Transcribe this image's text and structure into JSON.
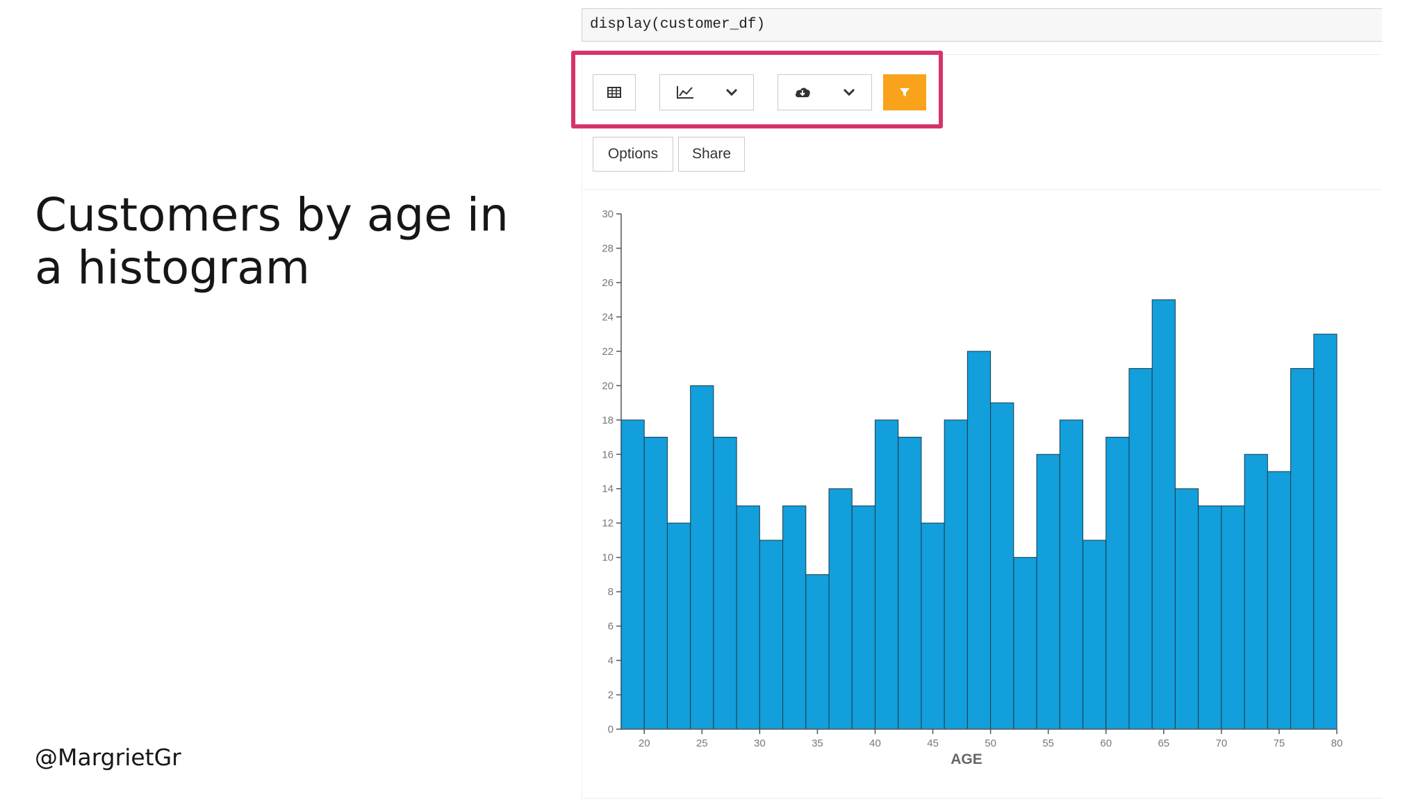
{
  "slide": {
    "title_line1": "Customers by age in",
    "title_line2": "a histogram",
    "handle": "@MargrietGr"
  },
  "notebook": {
    "code": "display(customer_df)",
    "toolbar": {
      "table_icon": "table-icon",
      "chart_icon": "line-chart-icon",
      "download_icon": "cloud-download-icon",
      "filter_icon": "filter-icon",
      "chevron_icon": "chevron-down-icon",
      "filter_color": "#f8a31b",
      "highlight_color": "#d6336c"
    },
    "buttons": {
      "options_label": "Options",
      "share_label": "Share"
    }
  },
  "chart_data": {
    "type": "bar",
    "xlabel": "AGE",
    "ylabel": "",
    "bar_color": "#129fdb",
    "xlim": [
      18,
      80
    ],
    "ylim": [
      0,
      30
    ],
    "bin_width": 2,
    "bin_starts": [
      18,
      20,
      22,
      24,
      26,
      28,
      30,
      32,
      34,
      36,
      38,
      40,
      42,
      44,
      46,
      48,
      50,
      52,
      54,
      56,
      58,
      60,
      62,
      64,
      66,
      68,
      70,
      72,
      74,
      76,
      78
    ],
    "values": [
      18,
      17,
      12,
      20,
      17,
      13,
      11,
      13,
      9,
      14,
      13,
      18,
      17,
      12,
      18,
      22,
      19,
      10,
      16,
      18,
      11,
      17,
      21,
      25,
      14,
      13,
      13,
      16,
      15,
      21,
      23
    ],
    "x_ticks": [
      "20",
      "25",
      "30",
      "35",
      "40",
      "45",
      "50",
      "55",
      "60",
      "65",
      "70",
      "75",
      "80"
    ],
    "y_ticks": [
      "0",
      "2",
      "4",
      "6",
      "8",
      "10",
      "12",
      "14",
      "16",
      "18",
      "20",
      "22",
      "24",
      "26",
      "28",
      "30"
    ],
    "grid": false
  }
}
